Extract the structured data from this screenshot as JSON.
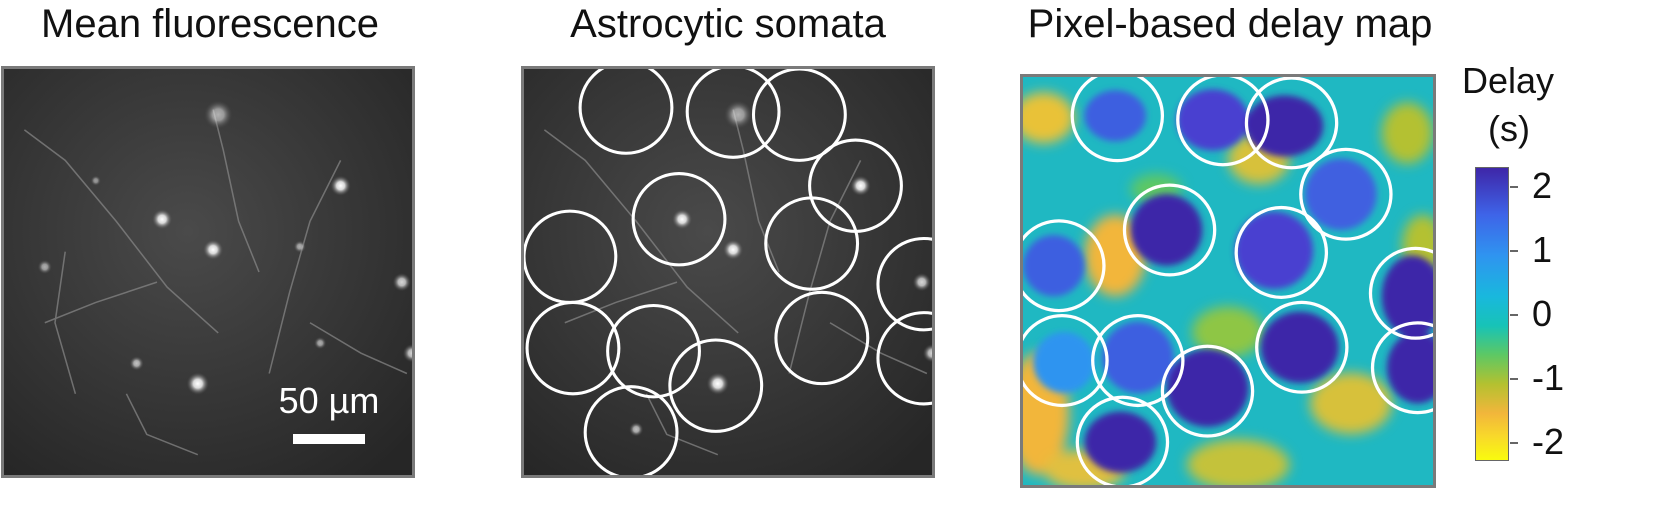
{
  "titles": {
    "panel1": "Mean fluorescence",
    "panel2": "Astrocytic somata",
    "panel3": "Pixel-based delay map"
  },
  "scale_bar": {
    "label": "50 µm"
  },
  "colorbar": {
    "title_line1": "Delay",
    "title_line2": "(s)",
    "ticks": [
      "2",
      "1",
      "0",
      "-1",
      "-2"
    ],
    "colormap": "parula",
    "colors": [
      "#3e26a8",
      "#2f94f0",
      "#17c3b7",
      "#b4c130",
      "#f9fb0e"
    ]
  },
  "styles": {
    "panel_border": "#7a7a7a",
    "circle_stroke": "#ffffff"
  }
}
